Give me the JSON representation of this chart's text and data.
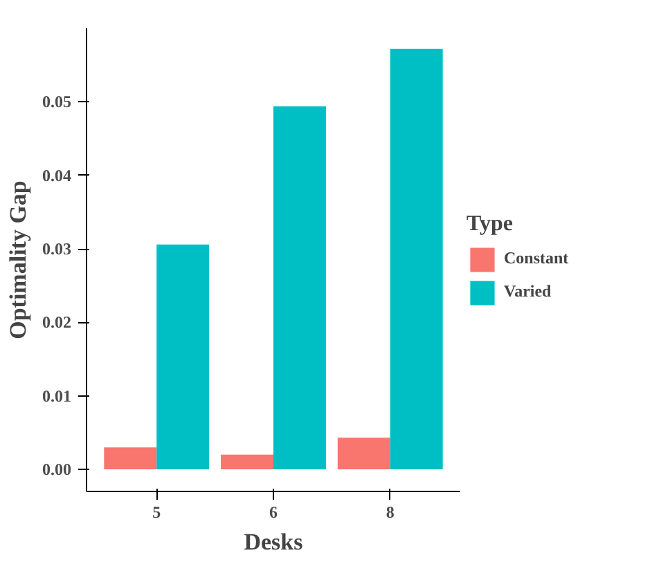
{
  "chart_data": {
    "type": "bar",
    "xlabel": "Desks",
    "ylabel": "Optimality Gap",
    "legend_title": "Type",
    "categories": [
      "5",
      "6",
      "8"
    ],
    "series": [
      {
        "name": "Constant",
        "color": "#f8766d",
        "values": [
          0.003,
          0.002,
          0.0043
        ]
      },
      {
        "name": "Varied",
        "color": "#00bfc4",
        "values": [
          0.0306,
          0.0494,
          0.0572
        ]
      }
    ],
    "ylim": [
      -0.003,
      0.06
    ],
    "yticks": [
      {
        "value": 0,
        "label": "0.00"
      },
      0.01,
      0.02,
      0.03,
      0.04,
      0.05
    ],
    "grid": false,
    "legend": "right"
  }
}
